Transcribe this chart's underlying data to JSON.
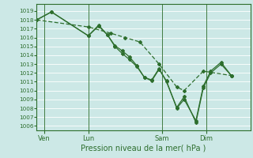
{
  "xlabel": "Pression niveau de la mer( hPa )",
  "background_color": "#cce8e6",
  "grid_color": "#ffffff",
  "line_color": "#2d6e2d",
  "ylim": [
    1005.5,
    1019.8
  ],
  "yticks": [
    1006,
    1007,
    1008,
    1009,
    1010,
    1011,
    1012,
    1013,
    1014,
    1015,
    1016,
    1017,
    1018,
    1019
  ],
  "day_labels": [
    "Ven",
    "Lun",
    "Sam",
    "Dim"
  ],
  "day_positions": [
    0.5,
    3.5,
    8.5,
    11.5
  ],
  "vline_positions": [
    0.5,
    3.5,
    8.5,
    11.5
  ],
  "xlim": [
    0,
    14.5
  ],
  "series1": {
    "x": [
      0.0,
      1.0,
      3.5,
      4.2,
      4.8,
      5.3,
      5.8,
      6.3,
      6.8,
      7.3,
      7.8,
      8.3,
      8.8,
      9.5,
      10.0,
      10.8,
      11.3,
      11.8,
      12.5,
      13.2
    ],
    "y": [
      1018.0,
      1018.9,
      1016.2,
      1017.3,
      1016.3,
      1015.0,
      1014.2,
      1013.5,
      1012.7,
      1011.5,
      1011.1,
      1012.4,
      1011.1,
      1008.0,
      1009.0,
      1006.6,
      1010.5,
      1012.2,
      1013.2,
      1011.7
    ]
  },
  "series2": {
    "x": [
      0.0,
      1.0,
      3.5,
      4.2,
      4.8,
      5.3,
      5.8,
      6.3,
      6.8,
      7.3,
      7.8,
      8.3,
      8.8,
      9.5,
      10.0,
      10.8,
      11.3,
      11.8,
      12.5,
      13.2
    ],
    "y": [
      1018.0,
      1018.9,
      1016.2,
      1017.4,
      1016.3,
      1015.1,
      1014.5,
      1013.8,
      1012.8,
      1011.5,
      1011.2,
      1012.5,
      1011.0,
      1008.1,
      1009.3,
      1006.4,
      1010.3,
      1012.0,
      1013.0,
      1011.7
    ]
  },
  "series3": {
    "x": [
      0.0,
      3.5,
      5.0,
      6.0,
      7.0,
      8.3,
      9.5,
      10.0,
      11.3,
      13.2
    ],
    "y": [
      1018.0,
      1017.2,
      1016.5,
      1016.0,
      1015.5,
      1013.0,
      1010.4,
      1010.0,
      1012.2,
      1011.7
    ]
  }
}
